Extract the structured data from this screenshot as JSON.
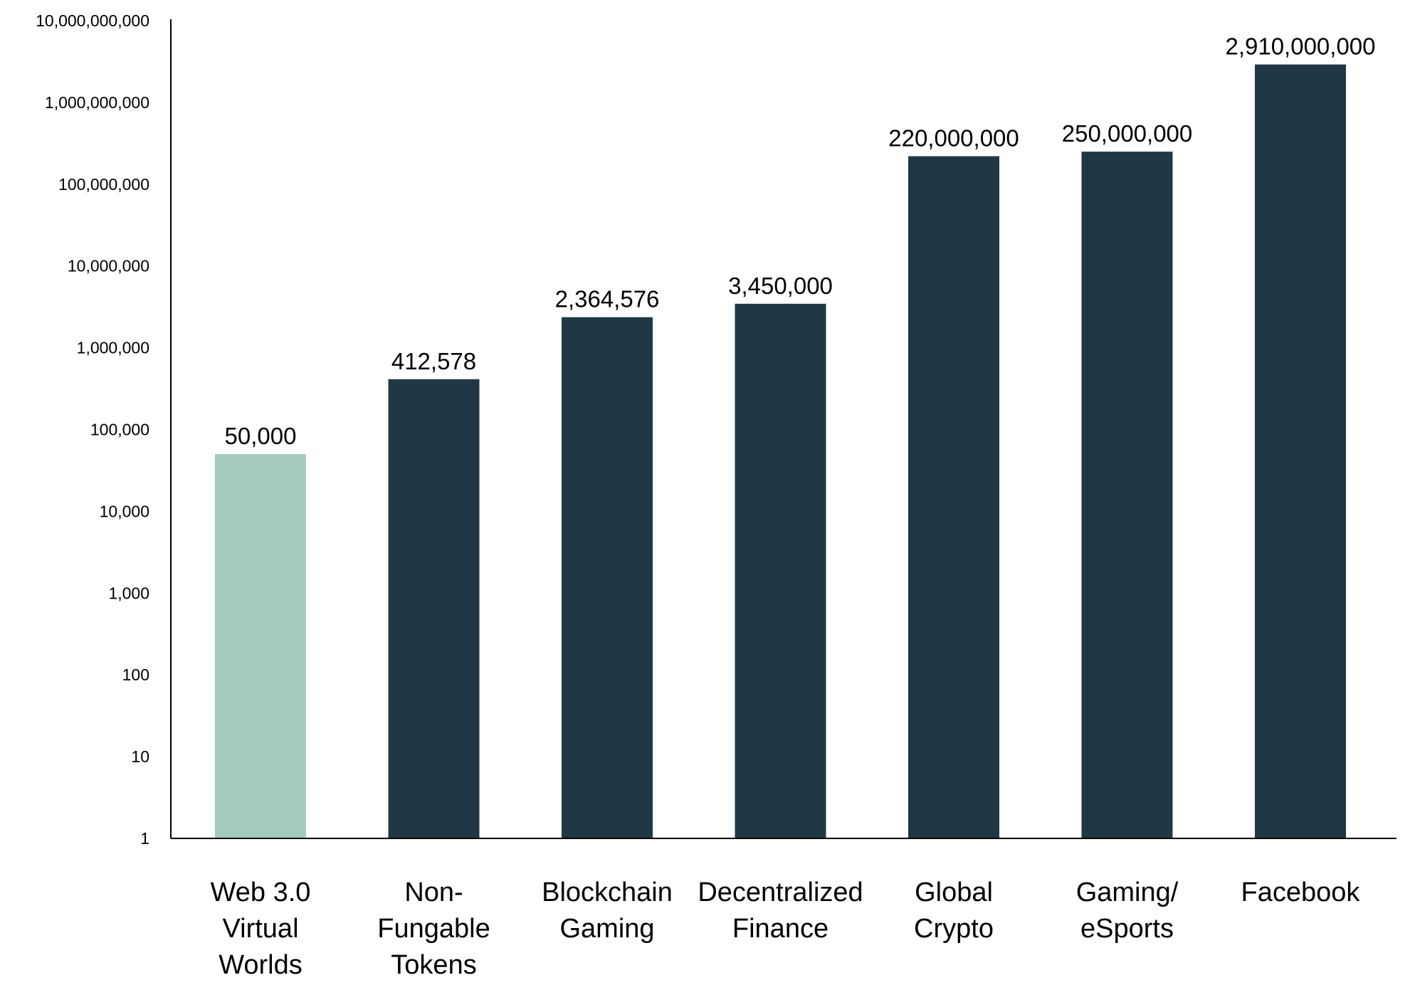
{
  "chart_data": {
    "type": "bar",
    "title": "",
    "xlabel": "",
    "ylabel": "",
    "y_scale": "log",
    "ylim": [
      1,
      10000000000
    ],
    "grid": false,
    "legend": "none",
    "y_ticks": [
      {
        "value": 1,
        "label": "1"
      },
      {
        "value": 10,
        "label": "10"
      },
      {
        "value": 100,
        "label": "100"
      },
      {
        "value": 1000,
        "label": "1,000"
      },
      {
        "value": 10000,
        "label": "10,000"
      },
      {
        "value": 100000,
        "label": "100,000"
      },
      {
        "value": 1000000,
        "label": "1,000,000"
      },
      {
        "value": 10000000,
        "label": "10,000,000"
      },
      {
        "value": 100000000,
        "label": "100,000,000"
      },
      {
        "value": 1000000000,
        "label": "1,000,000,000"
      },
      {
        "value": 10000000000,
        "label": "10,000,000,000"
      }
    ],
    "categories": [
      [
        "Web 3.0",
        "Virtual",
        "Worlds"
      ],
      [
        "Non-",
        "Fungable",
        "Tokens"
      ],
      [
        "Blockchain",
        "Gaming"
      ],
      [
        "Decentralized",
        "Finance"
      ],
      [
        "Global",
        "Crypto"
      ],
      [
        "Gaming/",
        "eSports"
      ],
      [
        "Facebook"
      ]
    ],
    "values": [
      50000,
      412578,
      2364576,
      3450000,
      220000000,
      250000000,
      2910000000
    ],
    "value_labels": [
      "50,000",
      "412,578",
      "2,364,576",
      "3,450,000",
      "220,000,000",
      "250,000,000",
      "2,910,000,000"
    ],
    "colors": [
      "#a5cbbf",
      "#203846",
      "#203846",
      "#203846",
      "#203846",
      "#203846",
      "#203846"
    ]
  }
}
